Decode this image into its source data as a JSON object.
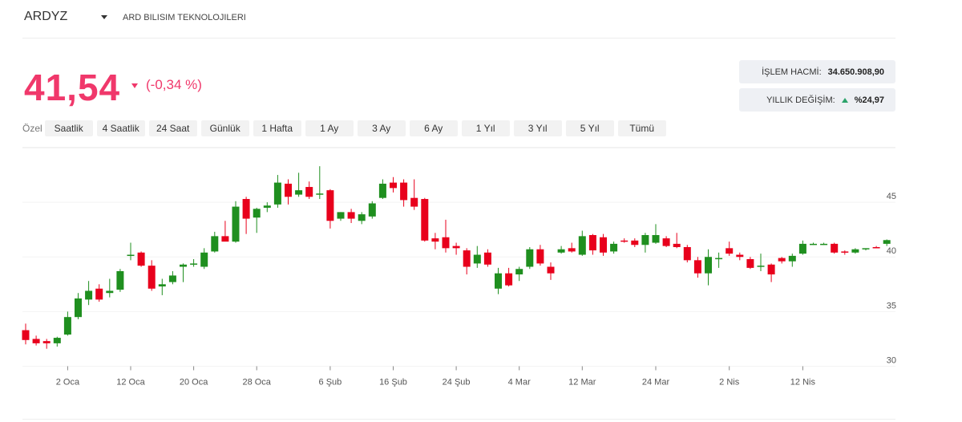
{
  "header": {
    "symbol": "ARDYZ",
    "name": "ARD BILISIM TEKNOLOJILERI",
    "price": "41,54",
    "change": "(-0,34 %)",
    "stats": [
      {
        "label": "İŞLEM HACMİ:",
        "value": "34.650.908,90"
      },
      {
        "label": "YILLIK DEĞİŞİM:",
        "value": "%24,97"
      }
    ]
  },
  "periods": {
    "label": "Özel",
    "options": [
      "Saatlik",
      "4 Saatlik",
      "24 Saat",
      "Günlük",
      "1 Hafta",
      "1 Ay",
      "3 Ay",
      "6 Ay",
      "1 Yıl",
      "3 Yıl",
      "5 Yıl",
      "Tümü"
    ]
  },
  "chart_data": {
    "type": "candlestick",
    "up_color": "#1f8f1f",
    "down_color": "#e8001c",
    "ylim": [
      30,
      50
    ],
    "yticks": [
      30,
      35,
      40,
      45
    ],
    "grid": true,
    "categories": [
      null,
      null,
      null,
      null,
      "2 Oca",
      null,
      null,
      null,
      null,
      null,
      "12 Oca",
      null,
      null,
      null,
      null,
      null,
      "20 Oca",
      null,
      null,
      null,
      null,
      null,
      "28 Oca",
      null,
      null,
      null,
      null,
      null,
      null,
      "6 Şub",
      null,
      null,
      null,
      null,
      null,
      "16 Şub",
      null,
      null,
      null,
      null,
      null,
      "24 Şub",
      null,
      null,
      null,
      null,
      null,
      "4 Mar",
      null,
      null,
      null,
      null,
      null,
      "12 Mar",
      null,
      null,
      null,
      null,
      null,
      null,
      "24 Mar",
      null,
      null,
      null,
      null,
      null,
      null,
      "2 Nis",
      null,
      null,
      null,
      null,
      null,
      null,
      "12 Nis",
      null,
      null,
      null,
      null,
      null,
      null,
      null,
      null
    ],
    "open": [
      33.3,
      32.5,
      32.3,
      32.1,
      32.9,
      34.5,
      36.1,
      37.1,
      36.7,
      37.0,
      40.2,
      40.4,
      39.2,
      37.3,
      37.7,
      39.1,
      39.3,
      39.1,
      40.5,
      41.9,
      41.4,
      45.3,
      43.6,
      44.5,
      44.8,
      46.7,
      45.7,
      46.4,
      45.8,
      46.1,
      43.5,
      44.1,
      43.3,
      43.7,
      45.4,
      46.8,
      46.8,
      45.4,
      45.3,
      41.7,
      41.8,
      41.0,
      40.6,
      39.4,
      40.4,
      37.1,
      38.5,
      38.4,
      39.1,
      40.7,
      39.1,
      40.4,
      40.8,
      40.2,
      42.0,
      41.8,
      40.5,
      41.5,
      41.5,
      41.1,
      41.3,
      41.7,
      41.2,
      40.9,
      39.7,
      38.5,
      39.8,
      40.8,
      40.2,
      39.8,
      39.1,
      39.3,
      39.9,
      39.6,
      40.3,
      41.2,
      41.2,
      41.2,
      40.5,
      40.4,
      40.7,
      40.9,
      41.2
    ],
    "high": [
      33.9,
      32.8,
      32.5,
      32.7,
      35.0,
      36.7,
      37.8,
      37.5,
      38.0,
      38.9,
      41.3,
      40.5,
      39.7,
      38.0,
      38.7,
      39.4,
      39.8,
      40.8,
      42.3,
      43.3,
      45.1,
      45.5,
      44.5,
      45.0,
      47.5,
      47.1,
      47.7,
      46.9,
      48.3,
      46.2,
      44.1,
      44.4,
      44.1,
      45.1,
      47.1,
      47.3,
      47.1,
      47.1,
      45.4,
      42.2,
      43.4,
      41.3,
      40.8,
      41.0,
      40.7,
      39.0,
      39.0,
      39.1,
      40.9,
      41.1,
      39.5,
      41.0,
      41.3,
      42.4,
      42.1,
      42.1,
      41.4,
      41.7,
      41.7,
      42.2,
      43.0,
      41.9,
      42.2,
      41.1,
      40.0,
      40.7,
      40.4,
      41.4,
      40.4,
      40.0,
      40.3,
      39.4,
      40.0,
      40.3,
      41.5,
      41.3,
      41.3,
      41.3,
      40.6,
      40.8,
      40.8,
      41.0,
      41.6
    ],
    "low": [
      32.0,
      31.9,
      31.6,
      31.8,
      32.8,
      34.3,
      35.6,
      35.9,
      36.3,
      36.8,
      39.7,
      39.1,
      36.9,
      36.5,
      37.5,
      37.7,
      39.1,
      38.9,
      40.4,
      41.5,
      41.3,
      42.1,
      42.2,
      44.1,
      44.5,
      44.8,
      45.5,
      45.3,
      45.3,
      42.6,
      43.3,
      43.1,
      43.0,
      43.5,
      45.3,
      45.9,
      44.6,
      44.3,
      41.4,
      40.7,
      40.4,
      40.2,
      38.4,
      39.0,
      39.1,
      36.6,
      37.3,
      37.8,
      38.9,
      39.2,
      37.9,
      40.3,
      40.4,
      40.1,
      40.2,
      40.1,
      40.3,
      41.3,
      40.9,
      40.4,
      41.2,
      40.9,
      40.8,
      39.5,
      38.1,
      37.4,
      39.0,
      40.1,
      39.7,
      38.9,
      38.7,
      37.7,
      39.4,
      39.1,
      40.2,
      41.1,
      41.1,
      40.3,
      40.2,
      40.3,
      40.6,
      40.8,
      41.0
    ],
    "close": [
      32.4,
      32.1,
      32.1,
      32.6,
      34.5,
      36.2,
      36.9,
      36.1,
      36.9,
      38.7,
      40.2,
      39.2,
      37.1,
      37.5,
      38.3,
      39.3,
      39.4,
      40.4,
      41.9,
      41.4,
      44.6,
      43.5,
      44.4,
      44.7,
      46.8,
      45.5,
      46.1,
      45.5,
      45.8,
      43.3,
      44.1,
      43.5,
      43.9,
      44.9,
      46.7,
      46.3,
      45.2,
      44.6,
      41.5,
      41.4,
      40.8,
      40.8,
      39.1,
      40.2,
      39.3,
      38.5,
      37.4,
      38.9,
      40.7,
      39.4,
      38.5,
      40.7,
      40.5,
      41.9,
      40.6,
      40.4,
      41.2,
      41.4,
      41.1,
      42.0,
      42.0,
      41.0,
      40.9,
      39.7,
      38.5,
      40.0,
      39.9,
      40.3,
      40.0,
      39.0,
      39.2,
      38.4,
      39.6,
      40.1,
      41.2,
      41.2,
      41.2,
      40.4,
      40.4,
      40.7,
      40.8,
      40.8,
      41.54
    ]
  }
}
